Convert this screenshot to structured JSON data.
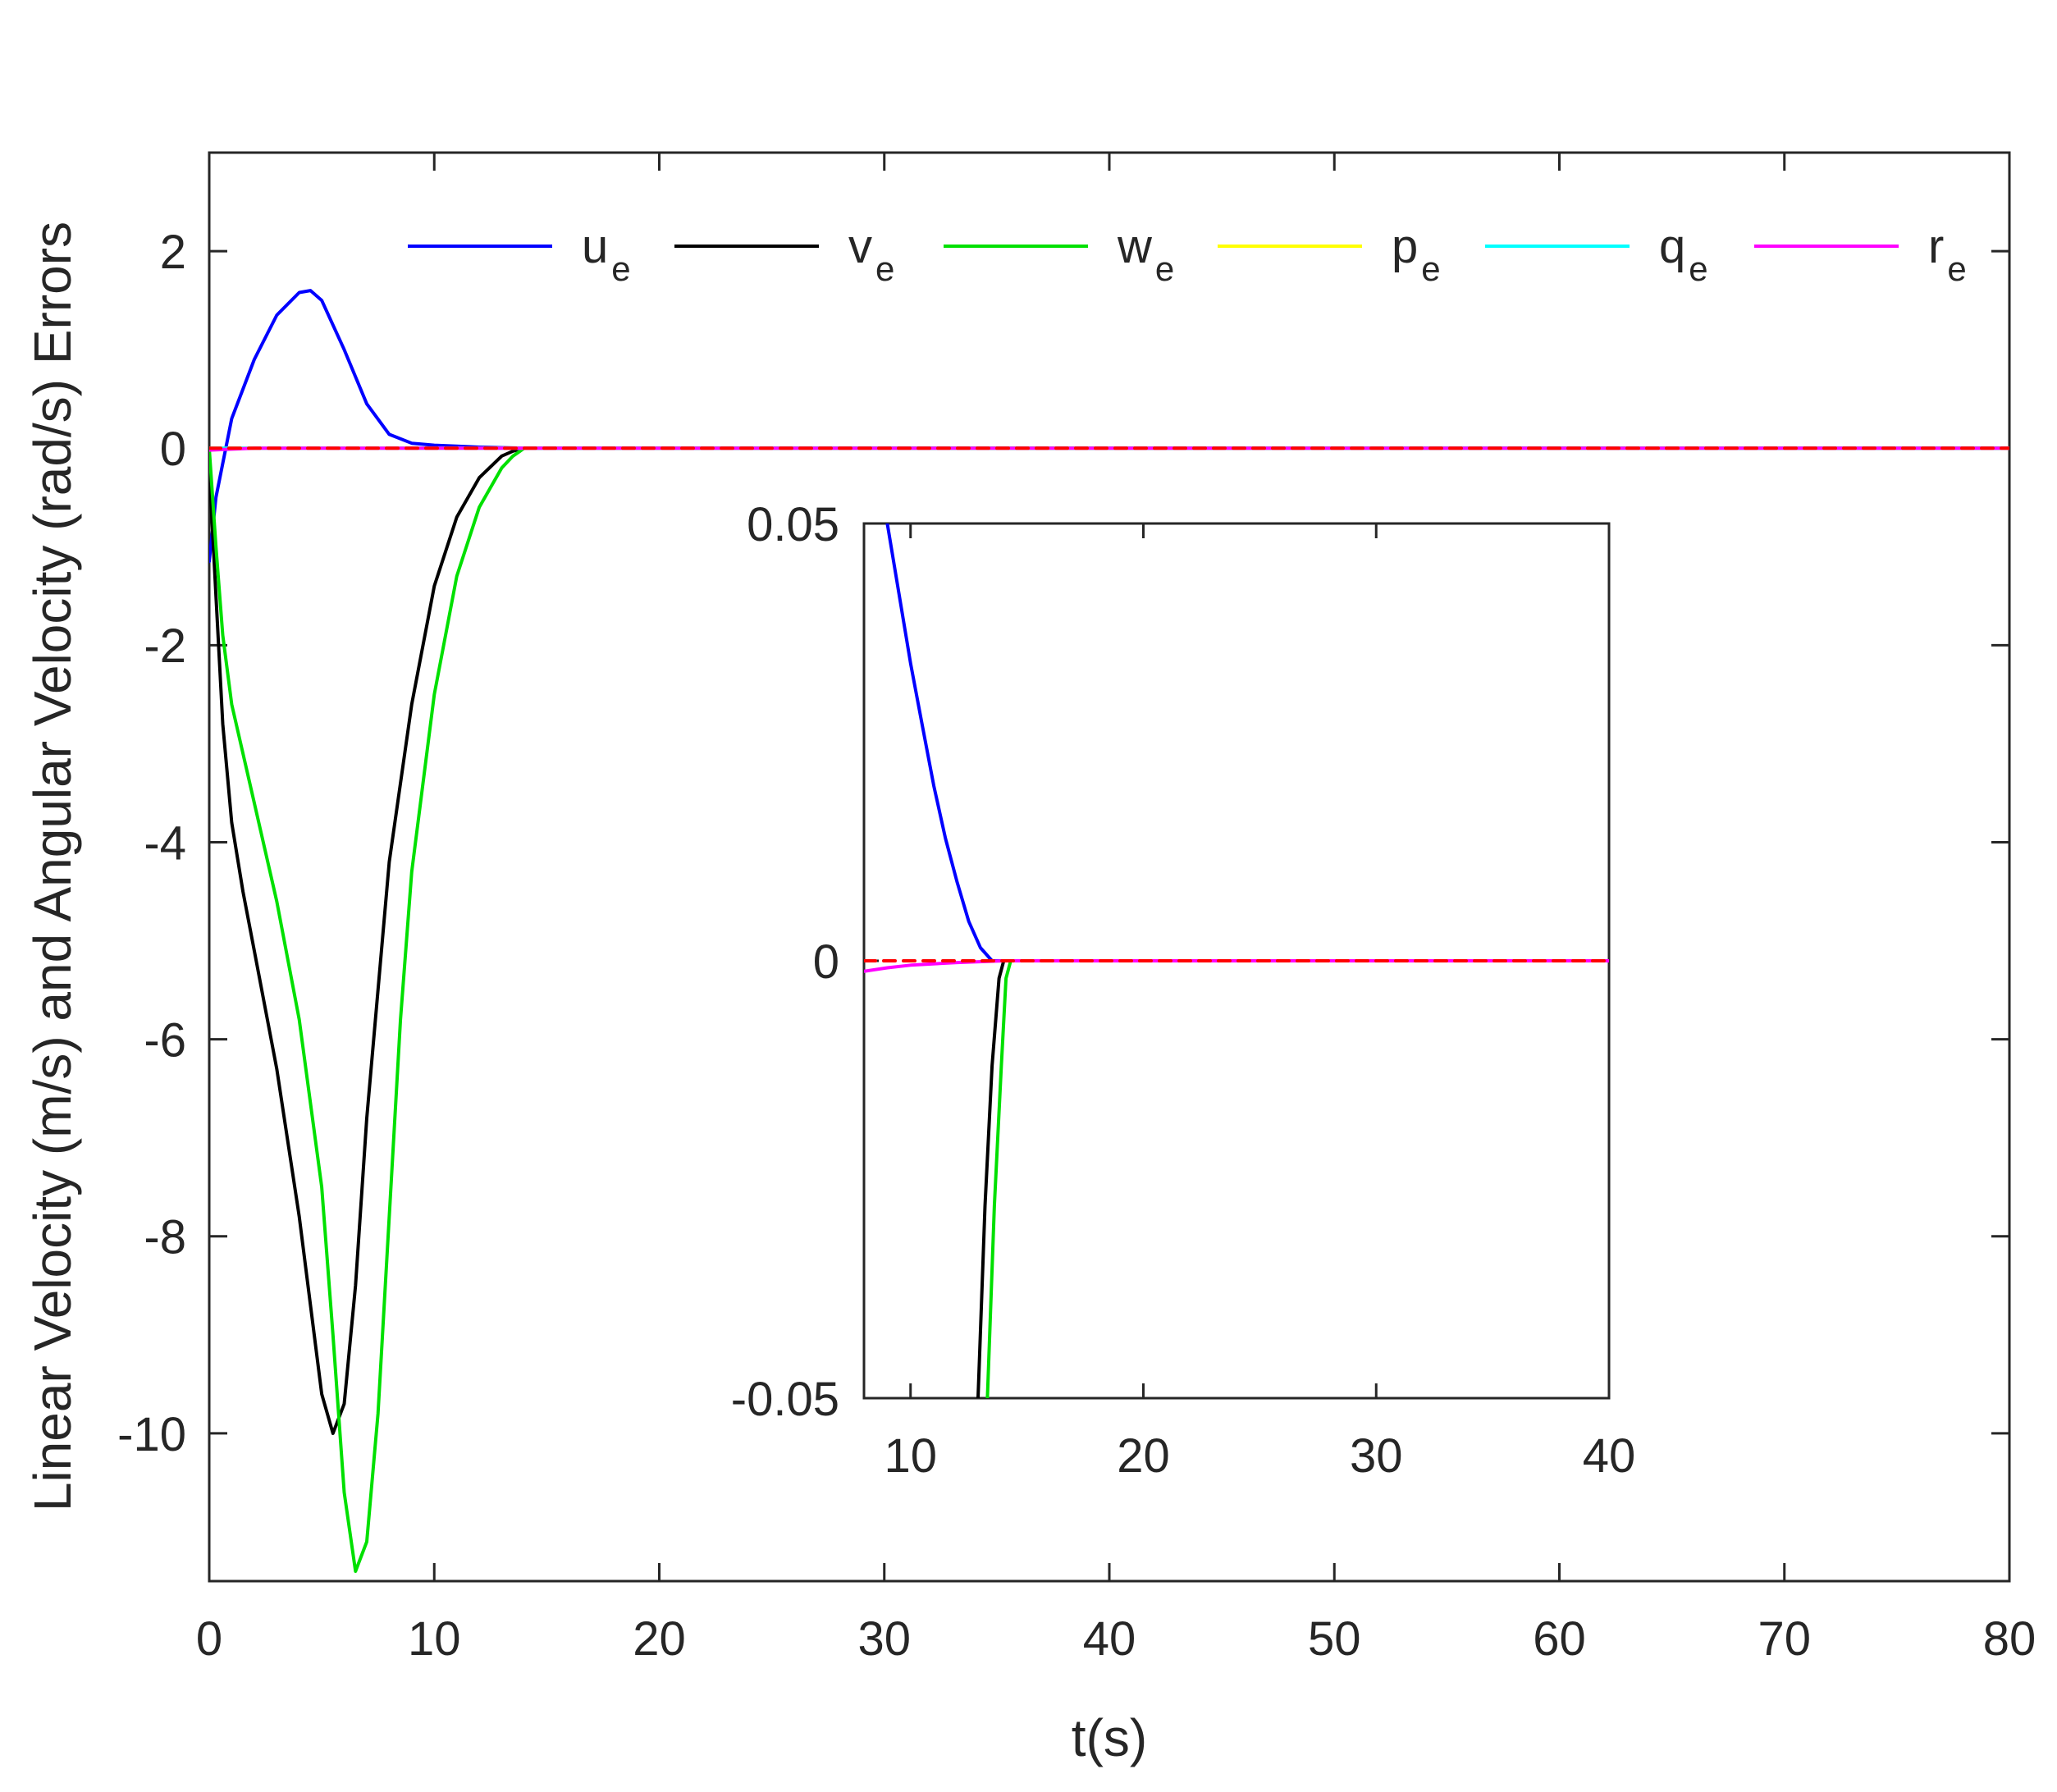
{
  "chart_data": [
    {
      "type": "line",
      "xlabel": "t(s)",
      "ylabel": "Linear Velocity (m/s) and Angular Velocity (rad/s) Errors",
      "xlim": [
        0,
        80
      ],
      "ylim": [
        -11.5,
        3
      ],
      "xticks": [
        0,
        10,
        20,
        30,
        40,
        50,
        60,
        70,
        80
      ],
      "xtick_labels": [
        "0",
        "10",
        "20",
        "30",
        "40",
        "50",
        "60",
        "70",
        "80"
      ],
      "yticks": [
        2,
        0,
        -2,
        -4,
        -6,
        -8,
        -10
      ],
      "ytick_labels": [
        "2",
        "0",
        "-2",
        "-4",
        "-6",
        "-8",
        "-10"
      ],
      "grid": false,
      "legend_position": "top",
      "series": [
        {
          "name": "u",
          "subscript": "e",
          "color": "#0000ff",
          "dashed": false,
          "x": [
            0,
            0.3,
            1,
            2,
            3,
            4,
            4.5,
            5,
            6,
            7,
            8,
            9,
            10,
            11,
            12,
            13,
            14,
            80
          ],
          "y": [
            -1.15,
            -0.5,
            0.3,
            0.9,
            1.35,
            1.58,
            1.6,
            1.5,
            1.0,
            0.45,
            0.14,
            0.05,
            0.03,
            0.02,
            0.01,
            0.005,
            0,
            0
          ]
        },
        {
          "name": "v",
          "subscript": "e",
          "color": "#000000",
          "dashed": false,
          "x": [
            0,
            0.3,
            0.6,
            1,
            1.5,
            2,
            3,
            4,
            5,
            5.5,
            6,
            6.5,
            7,
            8,
            9,
            10,
            11,
            12,
            13,
            13.5,
            14,
            80
          ],
          "y": [
            -0.2,
            -1.5,
            -2.8,
            -3.8,
            -4.5,
            -5.1,
            -6.3,
            -7.8,
            -9.6,
            -10.0,
            -9.7,
            -8.5,
            -6.8,
            -4.2,
            -2.6,
            -1.4,
            -0.7,
            -0.3,
            -0.08,
            -0.03,
            0,
            0
          ]
        },
        {
          "name": "w",
          "subscript": "e",
          "color": "#00e000",
          "dashed": false,
          "x": [
            0,
            0.3,
            0.6,
            1,
            2,
            3,
            4,
            5,
            5.5,
            6,
            6.5,
            7,
            7.5,
            8,
            8.5,
            9,
            10,
            11,
            12,
            13,
            13.5,
            14,
            80
          ],
          "y": [
            0,
            -1.0,
            -1.9,
            -2.6,
            -3.6,
            -4.6,
            -5.8,
            -7.5,
            -9.0,
            -10.6,
            -11.4,
            -11.1,
            -9.8,
            -7.8,
            -5.8,
            -4.3,
            -2.5,
            -1.3,
            -0.6,
            -0.2,
            -0.08,
            0,
            0
          ]
        },
        {
          "name": "p",
          "subscript": "e",
          "color": "#ffff00",
          "dashed": false,
          "x": [
            0,
            80
          ],
          "y": [
            0,
            0
          ]
        },
        {
          "name": "q",
          "subscript": "e",
          "color": "#00ffff",
          "dashed": false,
          "x": [
            0,
            80
          ],
          "y": [
            0,
            0
          ]
        },
        {
          "name": "r",
          "subscript": "e",
          "color": "#ff00ff",
          "dashed": false,
          "x": [
            0,
            1,
            2,
            80
          ],
          "y": [
            -0.02,
            -0.01,
            0,
            0
          ]
        },
        {
          "name": "",
          "color": "#ff0000",
          "dashed": true,
          "x": [
            0,
            80
          ],
          "y": [
            0,
            0
          ]
        }
      ]
    },
    {
      "type": "line",
      "inset": true,
      "xlim": [
        8,
        40
      ],
      "ylim": [
        -0.05,
        0.05
      ],
      "xticks": [
        10,
        20,
        30,
        40
      ],
      "xtick_labels": [
        "10",
        "20",
        "30",
        "40"
      ],
      "yticks": [
        0.05,
        0,
        -0.05
      ],
      "ytick_labels": [
        "0.05",
        "0",
        "-0.05"
      ],
      "grid": false,
      "series": [
        {
          "name": "u",
          "color": "#0000ff",
          "x": [
            9,
            9.5,
            10,
            10.5,
            11,
            11.5,
            12,
            12.5,
            13,
            13.5,
            14,
            40
          ],
          "y": [
            0.05,
            0.042,
            0.034,
            0.027,
            0.02,
            0.014,
            0.009,
            0.0045,
            0.0015,
            0,
            0,
            0
          ]
        },
        {
          "name": "v",
          "color": "#000000",
          "x": [
            12.9,
            13.2,
            13.5,
            13.8,
            14,
            40
          ],
          "y": [
            -0.05,
            -0.028,
            -0.012,
            -0.002,
            0,
            0
          ]
        },
        {
          "name": "w",
          "color": "#00e000",
          "x": [
            13.3,
            13.6,
            13.9,
            14.1,
            14.3,
            40
          ],
          "y": [
            -0.05,
            -0.028,
            -0.012,
            -0.002,
            0,
            0
          ]
        },
        {
          "name": "r",
          "color": "#ff00ff",
          "x": [
            8,
            9,
            10,
            12,
            14,
            40
          ],
          "y": [
            -0.0012,
            -0.0008,
            -0.0005,
            -0.0002,
            0,
            0
          ]
        },
        {
          "name": "",
          "color": "#ff0000",
          "dashed": true,
          "x": [
            8,
            40
          ],
          "y": [
            0,
            0
          ]
        }
      ]
    }
  ]
}
